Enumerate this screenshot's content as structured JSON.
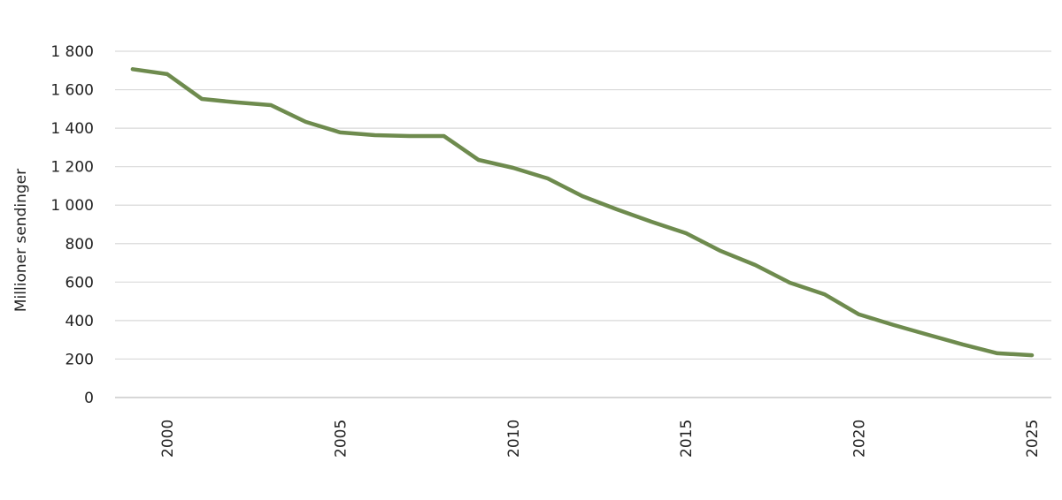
{
  "chart_data": {
    "type": "line",
    "title": "",
    "xlabel": "",
    "ylabel": "Millioner sendinger",
    "ylim": [
      0,
      1800
    ],
    "xlim": [
      1999,
      2025
    ],
    "grid": true,
    "y_ticks": [
      0,
      200,
      400,
      600,
      800,
      1000,
      1200,
      1400,
      1600,
      1800
    ],
    "y_tick_labels": [
      "0",
      "200",
      "400",
      "600",
      "800",
      "1 000",
      "1 200",
      "1 400",
      "1 600",
      "1 800"
    ],
    "x_ticks": [
      2000,
      2005,
      2010,
      2015,
      2020,
      2025
    ],
    "x_tick_labels": [
      "2000",
      "2005",
      "2010",
      "2015",
      "2020",
      "2025"
    ],
    "series": [
      {
        "name": "Millioner sendinger",
        "color": "#6e8b4e",
        "x": [
          1999,
          2000,
          2001,
          2002,
          2003,
          2004,
          2005,
          2006,
          2007,
          2008,
          2009,
          2010,
          2011,
          2012,
          2013,
          2014,
          2015,
          2016,
          2017,
          2018,
          2019,
          2020,
          2021,
          2022,
          2023,
          2024,
          2025
        ],
        "values": [
          1707,
          1681,
          1552,
          1534,
          1520,
          1433,
          1378,
          1364,
          1359,
          1359,
          1235,
          1194,
          1139,
          1047,
          978,
          914,
          854,
          762,
          689,
          597,
          537,
          432,
          377,
          326,
          276,
          230,
          220
        ]
      }
    ]
  }
}
